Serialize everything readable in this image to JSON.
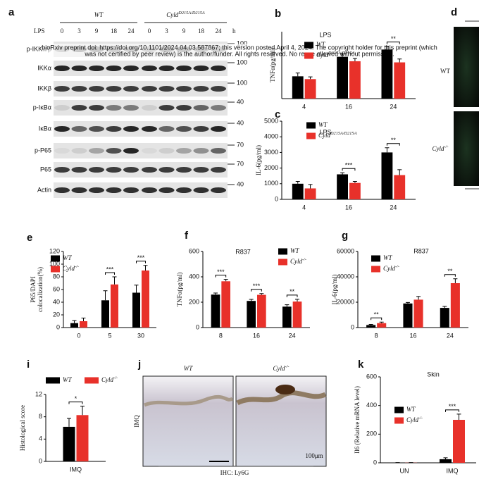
{
  "blot": {
    "label": "a",
    "groups": [
      "WT",
      "CyldD215A/D215A"
    ],
    "treatment": "LPS",
    "times": [
      0,
      3,
      9,
      18,
      24,
      0,
      3,
      9,
      18,
      24
    ],
    "unit": "h",
    "rows": [
      {
        "name": "p-IKKα/β",
        "marker": 100
      },
      {
        "name": "IKKα",
        "marker": 100
      },
      {
        "name": "IKKβ",
        "marker": 100
      },
      {
        "name": "p-IκBα",
        "marker": 40
      },
      {
        "name": "IκBα",
        "marker": 40
      },
      {
        "name": "p-P65",
        "marker": 70
      },
      {
        "name": "P65",
        "marker": 70
      },
      {
        "name": "Actin",
        "marker": 40
      }
    ]
  },
  "preprint_notice": [
    "bioRxiv preprint doi: https://doi.org/10.1101/2024.04.03.587867; this version posted April 4, 2024. The copyright holder for this preprint (which",
    "was not certified by peer review) is the author/funder. All rights reserved. No reuse allowed without permission."
  ],
  "images_d": {
    "label": "d",
    "rows": [
      "WT",
      "Cyld-/-"
    ]
  },
  "images_j": {
    "label": "j",
    "columns": [
      "WT",
      "Cyld-/-"
    ],
    "row": "IMQ",
    "scale": "100μm",
    "stain": "IHC: Ly6G"
  },
  "chart_data": [
    {
      "type": "bar",
      "label": "b",
      "title": "LPS",
      "ylabel": "TNFα(pg/ml)",
      "categories": [
        "4",
        "16",
        "24"
      ],
      "ylim": [
        0,
        120
      ],
      "series": [
        {
          "name": "WT",
          "color": "#000000",
          "values": [
            40,
            75,
            88
          ],
          "errors": [
            6,
            5,
            6
          ]
        },
        {
          "name": "CyldD215A/D215A",
          "color": "#e8312a",
          "values": [
            35,
            67,
            65
          ],
          "errors": [
            4,
            5,
            6
          ]
        }
      ],
      "annotations": [
        {
          "x": "24",
          "text": "**"
        }
      ]
    },
    {
      "type": "bar",
      "label": "c",
      "title": "LPS",
      "ylabel": "IL-6(pg/ml)",
      "categories": [
        "4",
        "16",
        "24"
      ],
      "ylim": [
        0,
        5000
      ],
      "yticks": [
        0,
        1000,
        2000,
        3000,
        4000,
        5000
      ],
      "series": [
        {
          "name": "WT",
          "color": "#000000",
          "values": [
            1000,
            1600,
            3000
          ],
          "errors": [
            150,
            100,
            300
          ]
        },
        {
          "name": "CyldD215A/D215A",
          "color": "#e8312a",
          "values": [
            700,
            1050,
            1550
          ],
          "errors": [
            250,
            100,
            350
          ]
        }
      ],
      "annotations": [
        {
          "x": "16",
          "text": "***"
        },
        {
          "x": "24",
          "text": "**"
        }
      ]
    },
    {
      "type": "bar",
      "label": "e",
      "ylabel": [
        "P65/DAPI",
        "colocalization(%)"
      ],
      "categories": [
        "0",
        "5",
        "30"
      ],
      "ylim": [
        0,
        120
      ],
      "yticks": [
        0,
        20,
        40,
        60,
        80,
        100,
        120
      ],
      "series": [
        {
          "name": "WT",
          "color": "#000000",
          "values": [
            7,
            43,
            55
          ],
          "errors": [
            4,
            15,
            12
          ]
        },
        {
          "name": "Cyld-/-",
          "color": "#e8312a",
          "values": [
            10,
            68,
            90
          ],
          "errors": [
            5,
            12,
            8
          ]
        }
      ],
      "annotations": [
        {
          "x": "5",
          "text": "***"
        },
        {
          "x": "30",
          "text": "***"
        }
      ]
    },
    {
      "type": "bar",
      "label": "f",
      "title": "R837",
      "ylabel": "TNFα(pg/ml)",
      "categories": [
        "8",
        "16",
        "24"
      ],
      "ylim": [
        0,
        600
      ],
      "yticks": [
        0,
        200,
        400,
        600
      ],
      "series": [
        {
          "name": "WT",
          "color": "#000000",
          "values": [
            260,
            210,
            165
          ],
          "errors": [
            12,
            12,
            15
          ]
        },
        {
          "name": "Cyld-/-",
          "color": "#e8312a",
          "values": [
            365,
            258,
            205
          ],
          "errors": [
            15,
            10,
            18
          ]
        }
      ],
      "annotations": [
        {
          "x": "8",
          "text": "***"
        },
        {
          "x": "16",
          "text": "***"
        },
        {
          "x": "24",
          "text": "**"
        }
      ]
    },
    {
      "type": "bar",
      "label": "g",
      "title": "R837",
      "ylabel": "IL-6(pg/ml)",
      "categories": [
        "8",
        "16",
        "24"
      ],
      "ylim": [
        0,
        60000
      ],
      "yticks": [
        0,
        20000,
        40000,
        60000
      ],
      "series": [
        {
          "name": "WT",
          "color": "#000000",
          "values": [
            2000,
            19000,
            15500
          ],
          "errors": [
            500,
            800,
            1200
          ]
        },
        {
          "name": "Cyld-/-",
          "color": "#e8312a",
          "values": [
            3500,
            22000,
            35000
          ],
          "errors": [
            800,
            2500,
            3500
          ]
        }
      ],
      "annotations": [
        {
          "x": "8",
          "text": "**"
        },
        {
          "x": "24",
          "text": "**"
        }
      ]
    },
    {
      "type": "bar",
      "label": "i",
      "ylabel": "Histological score",
      "categories": [
        "IMQ"
      ],
      "ylim": [
        0,
        12
      ],
      "yticks": [
        0,
        4,
        8,
        12
      ],
      "series": [
        {
          "name": "WT",
          "color": "#000000",
          "values": [
            6.2
          ],
          "errors": [
            1.5
          ]
        },
        {
          "name": "Cyld-/-",
          "color": "#e8312a",
          "values": [
            8.3
          ],
          "errors": [
            1.6
          ]
        }
      ],
      "annotations": [
        {
          "x": "IMQ",
          "text": "*"
        }
      ]
    },
    {
      "type": "bar",
      "label": "k",
      "title": "Skin",
      "ylabel": "Il6 (Relative mRNA level)",
      "categories": [
        "UN",
        "IMQ"
      ],
      "ylim": [
        0,
        600
      ],
      "yticks": [
        0,
        200,
        400,
        600
      ],
      "series": [
        {
          "name": "WT",
          "color": "#000000",
          "values": [
            1,
            25
          ],
          "errors": [
            1,
            10
          ]
        },
        {
          "name": "Cyld-/-",
          "color": "#e8312a",
          "values": [
            1,
            300
          ],
          "errors": [
            1,
            40
          ]
        }
      ],
      "annotations": [
        {
          "x": "IMQ",
          "text": "***"
        }
      ]
    }
  ]
}
